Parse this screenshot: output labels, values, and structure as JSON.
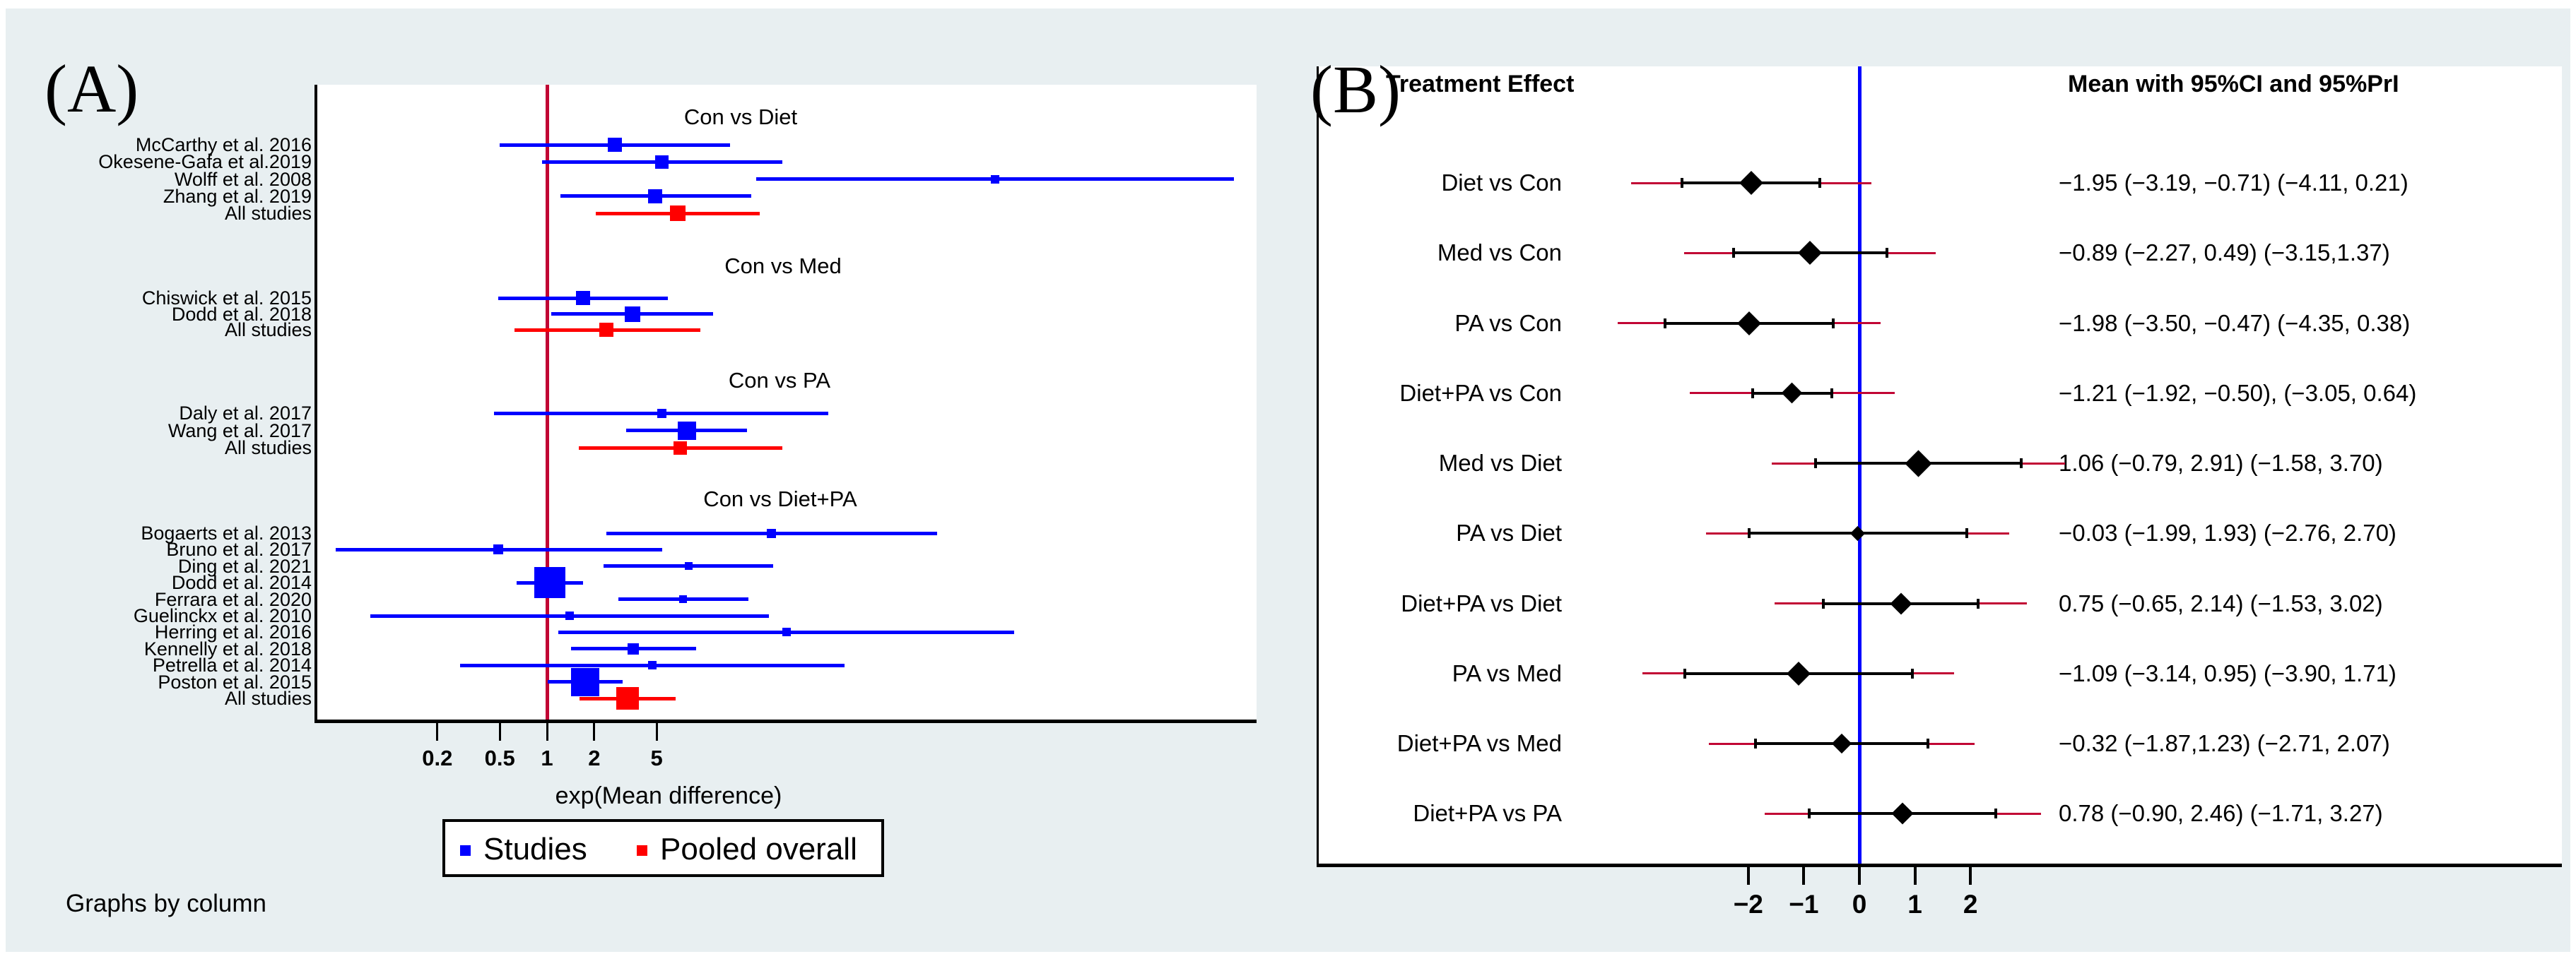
{
  "figure": {
    "panel_a_label": "(A)",
    "panel_b_label": "(B)",
    "note": "Graphs by column"
  },
  "colors": {
    "background": "#e8eff1",
    "study_blue": "#0000ff",
    "pooled_red": "#ff0000",
    "ref_line_crimson": "#c10534",
    "pri_crimson": "#c10534",
    "black": "#000000"
  },
  "legend": {
    "studies_label": "Studies",
    "pooled_label": "Pooled overall"
  },
  "chart_data": [
    {
      "panel": "A",
      "type": "forest",
      "x_scale": "log",
      "x_label": "exp(Mean difference)",
      "x_ticks": [
        0.2,
        0.5,
        1,
        2,
        5
      ],
      "x_tick_labels": [
        "0.2",
        "0.5",
        "1",
        "2",
        "5"
      ],
      "ref_line_x": 1,
      "legend": [
        "Studies",
        "Pooled overall"
      ],
      "note": "Graphs by column",
      "groups": [
        {
          "title": "Con vs Diet",
          "studies": [
            {
              "label": "McCarthy et al. 2016",
              "est": 2.7,
              "lo": 0.5,
              "hi": 14.7,
              "pooled": false,
              "weight": 20
            },
            {
              "label": "Okesene-Gafa et al.2019",
              "est": 5.4,
              "lo": 0.93,
              "hi": 31.5,
              "pooled": false,
              "weight": 19
            },
            {
              "label": "Wolff et al. 2008",
              "est": 720,
              "lo": 21.6,
              "hi": 24000,
              "pooled": false,
              "weight": 12
            },
            {
              "label": "Zhang  et al. 2019",
              "est": 4.9,
              "lo": 1.22,
              "hi": 20.0,
              "pooled": false,
              "weight": 20
            },
            {
              "label": "All studies",
              "est": 6.8,
              "lo": 2.04,
              "hi": 22.7,
              "pooled": true,
              "weight": 22
            }
          ]
        },
        {
          "title": "Con vs Med",
          "studies": [
            {
              "label": "Chiswick et al. 2015",
              "est": 1.7,
              "lo": 0.49,
              "hi": 5.9,
              "pooled": false,
              "weight": 20
            },
            {
              "label": "Dodd et al. 2018",
              "est": 3.5,
              "lo": 1.06,
              "hi": 11.4,
              "pooled": false,
              "weight": 22
            },
            {
              "label": "All studies",
              "est": 2.4,
              "lo": 0.62,
              "hi": 9.5,
              "pooled": true,
              "weight": 20
            }
          ]
        },
        {
          "title": "Con vs PA",
          "studies": [
            {
              "label": "Daly et al. 2017",
              "est": 5.4,
              "lo": 0.46,
              "hi": 62,
              "pooled": false,
              "weight": 13
            },
            {
              "label": "Wang et al. 2017",
              "est": 7.8,
              "lo": 3.2,
              "hi": 18.8,
              "pooled": false,
              "weight": 26
            },
            {
              "label": "All studies",
              "est": 7.1,
              "lo": 1.6,
              "hi": 31.5,
              "pooled": true,
              "weight": 19
            }
          ]
        },
        {
          "title": "Con vs Diet+PA",
          "studies": [
            {
              "label": "Bogaerts et al. 2013",
              "est": 27,
              "lo": 2.4,
              "hi": 305,
              "pooled": false,
              "weight": 13
            },
            {
              "label": "Bruno et al. 2017",
              "est": 0.49,
              "lo": 0.045,
              "hi": 5.4,
              "pooled": false,
              "weight": 14
            },
            {
              "label": "Ding et al. 2021",
              "est": 8.0,
              "lo": 2.3,
              "hi": 27.5,
              "pooled": false,
              "weight": 11
            },
            {
              "label": "Dodd et al. 2014",
              "est": 1.04,
              "lo": 0.64,
              "hi": 1.7,
              "pooled": false,
              "weight": 44
            },
            {
              "label": "Ferrara et al. 2020",
              "est": 7.4,
              "lo": 2.85,
              "hi": 19.2,
              "pooled": false,
              "weight": 11
            },
            {
              "label": "Guelinckx et al. 2010",
              "est": 1.39,
              "lo": 0.075,
              "hi": 26,
              "pooled": false,
              "weight": 12
            },
            {
              "label": "Herring et al. 2016",
              "est": 33.5,
              "lo": 1.18,
              "hi": 950,
              "pooled": false,
              "weight": 12
            },
            {
              "label": "Kennelly et al. 2018",
              "est": 3.55,
              "lo": 1.42,
              "hi": 8.9,
              "pooled": false,
              "weight": 16
            },
            {
              "label": "Petrella et al. 2014",
              "est": 4.7,
              "lo": 0.28,
              "hi": 79,
              "pooled": false,
              "weight": 12
            },
            {
              "label": "Poston et al. 2015",
              "est": 1.75,
              "lo": 1.01,
              "hi": 3.03,
              "pooled": false,
              "weight": 40
            },
            {
              "label": "All studies",
              "est": 3.26,
              "lo": 1.61,
              "hi": 6.6,
              "pooled": true,
              "weight": 32
            }
          ]
        }
      ]
    },
    {
      "panel": "B",
      "type": "forest",
      "x_scale": "linear",
      "header_left": "Treatment Effect",
      "header_right": "Mean with 95%CI and 95%PrI",
      "x_ticks": [
        -2,
        -1,
        0,
        1,
        2
      ],
      "x_tick_labels": [
        "−2",
        "−1",
        "0",
        "1",
        "2"
      ],
      "ref_line_x": 0,
      "rows": [
        {
          "label": "Diet vs Con",
          "text": "−1.95 (−3.19, −0.71) (−4.11, 0.21)",
          "mean": -1.95,
          "ci": [
            -3.19,
            -0.71
          ],
          "pri": [
            -4.11,
            0.21
          ],
          "dsize": 24
        },
        {
          "label": "Med vs Con",
          "text": "−0.89 (−2.27, 0.49) (−3.15,1.37)",
          "mean": -0.89,
          "ci": [
            -2.27,
            0.49
          ],
          "pri": [
            -3.15,
            1.37
          ],
          "dsize": 24
        },
        {
          "label": "PA vs Con",
          "text": "−1.98 (−3.50, −0.47) (−4.35, 0.38)",
          "mean": -1.98,
          "ci": [
            -3.5,
            -0.47
          ],
          "pri": [
            -4.35,
            0.38
          ],
          "dsize": 24
        },
        {
          "label": "Diet+PA vs Con",
          "text": "−1.21 (−1.92, −0.50), (−3.05, 0.64)",
          "mean": -1.21,
          "ci": [
            -1.92,
            -0.5
          ],
          "pri": [
            -3.05,
            0.64
          ],
          "dsize": 21
        },
        {
          "label": "Med vs Diet",
          "text": "1.06 (−0.79, 2.91) (−1.58, 3.70)",
          "mean": 1.06,
          "ci": [
            -0.79,
            2.91
          ],
          "pri": [
            -1.58,
            3.7
          ],
          "dsize": 27
        },
        {
          "label": "PA vs Diet",
          "text": "−0.03 (−1.99, 1.93) (−2.76, 2.70)",
          "mean": -0.03,
          "ci": [
            -1.99,
            1.93
          ],
          "pri": [
            -2.76,
            2.7
          ],
          "dsize": 15
        },
        {
          "label": "Diet+PA vs Diet",
          "text": "0.75 (−0.65, 2.14) (−1.53, 3.02)",
          "mean": 0.75,
          "ci": [
            -0.65,
            2.14
          ],
          "pri": [
            -1.53,
            3.02
          ],
          "dsize": 22
        },
        {
          "label": "PA vs Med",
          "text": "−1.09 (−3.14, 0.95) (−3.90, 1.71)",
          "mean": -1.09,
          "ci": [
            -3.14,
            0.95
          ],
          "pri": [
            -3.9,
            1.71
          ],
          "dsize": 24
        },
        {
          "label": "Diet+PA vs Med",
          "text": "−0.32 (−1.87,1.23) (−2.71, 2.07)",
          "mean": -0.32,
          "ci": [
            -1.87,
            1.23
          ],
          "pri": [
            -2.71,
            2.07
          ],
          "dsize": 20
        },
        {
          "label": "Diet+PA vs PA",
          "text": "0.78 (−0.90, 2.46) (−1.71, 3.27)",
          "mean": 0.78,
          "ci": [
            -0.9,
            2.46
          ],
          "pri": [
            -1.71,
            3.27
          ],
          "dsize": 22
        }
      ]
    }
  ]
}
